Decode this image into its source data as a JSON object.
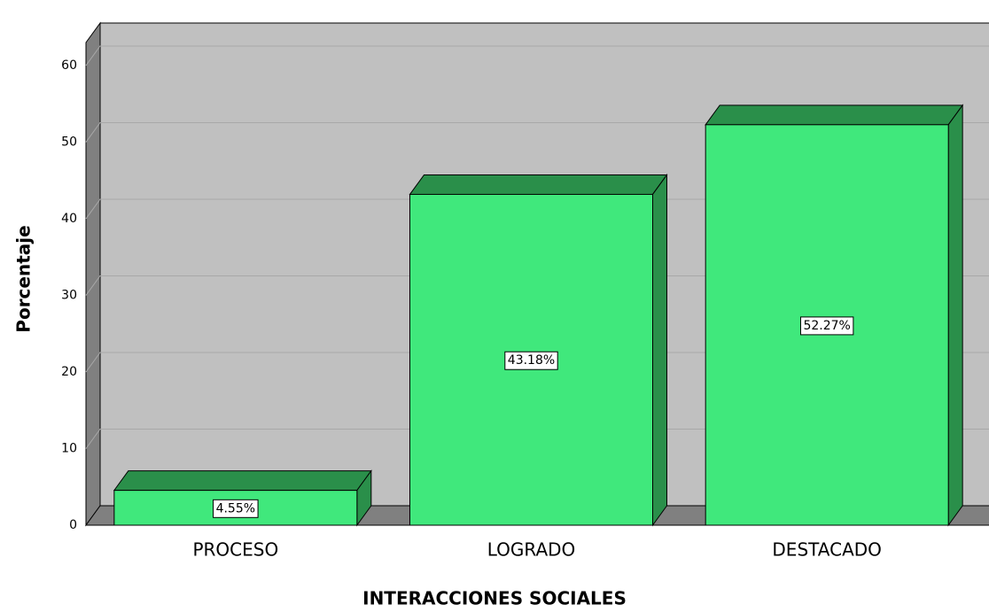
{
  "chart_data": {
    "type": "bar3d",
    "x_label": "INTERACCIONES SOCIALES",
    "y_label": "Porcentaje",
    "categories": [
      "PROCESO",
      "LOGRADO",
      "DESTACADO"
    ],
    "values": [
      4.55,
      43.18,
      52.27
    ],
    "value_labels": [
      "4.55%",
      "43.18%",
      "52.27%"
    ],
    "color": "#40e87c",
    "ylim": [
      0,
      63
    ],
    "yticks": [
      0,
      10,
      20,
      30,
      40,
      50,
      60
    ],
    "grid": true
  }
}
